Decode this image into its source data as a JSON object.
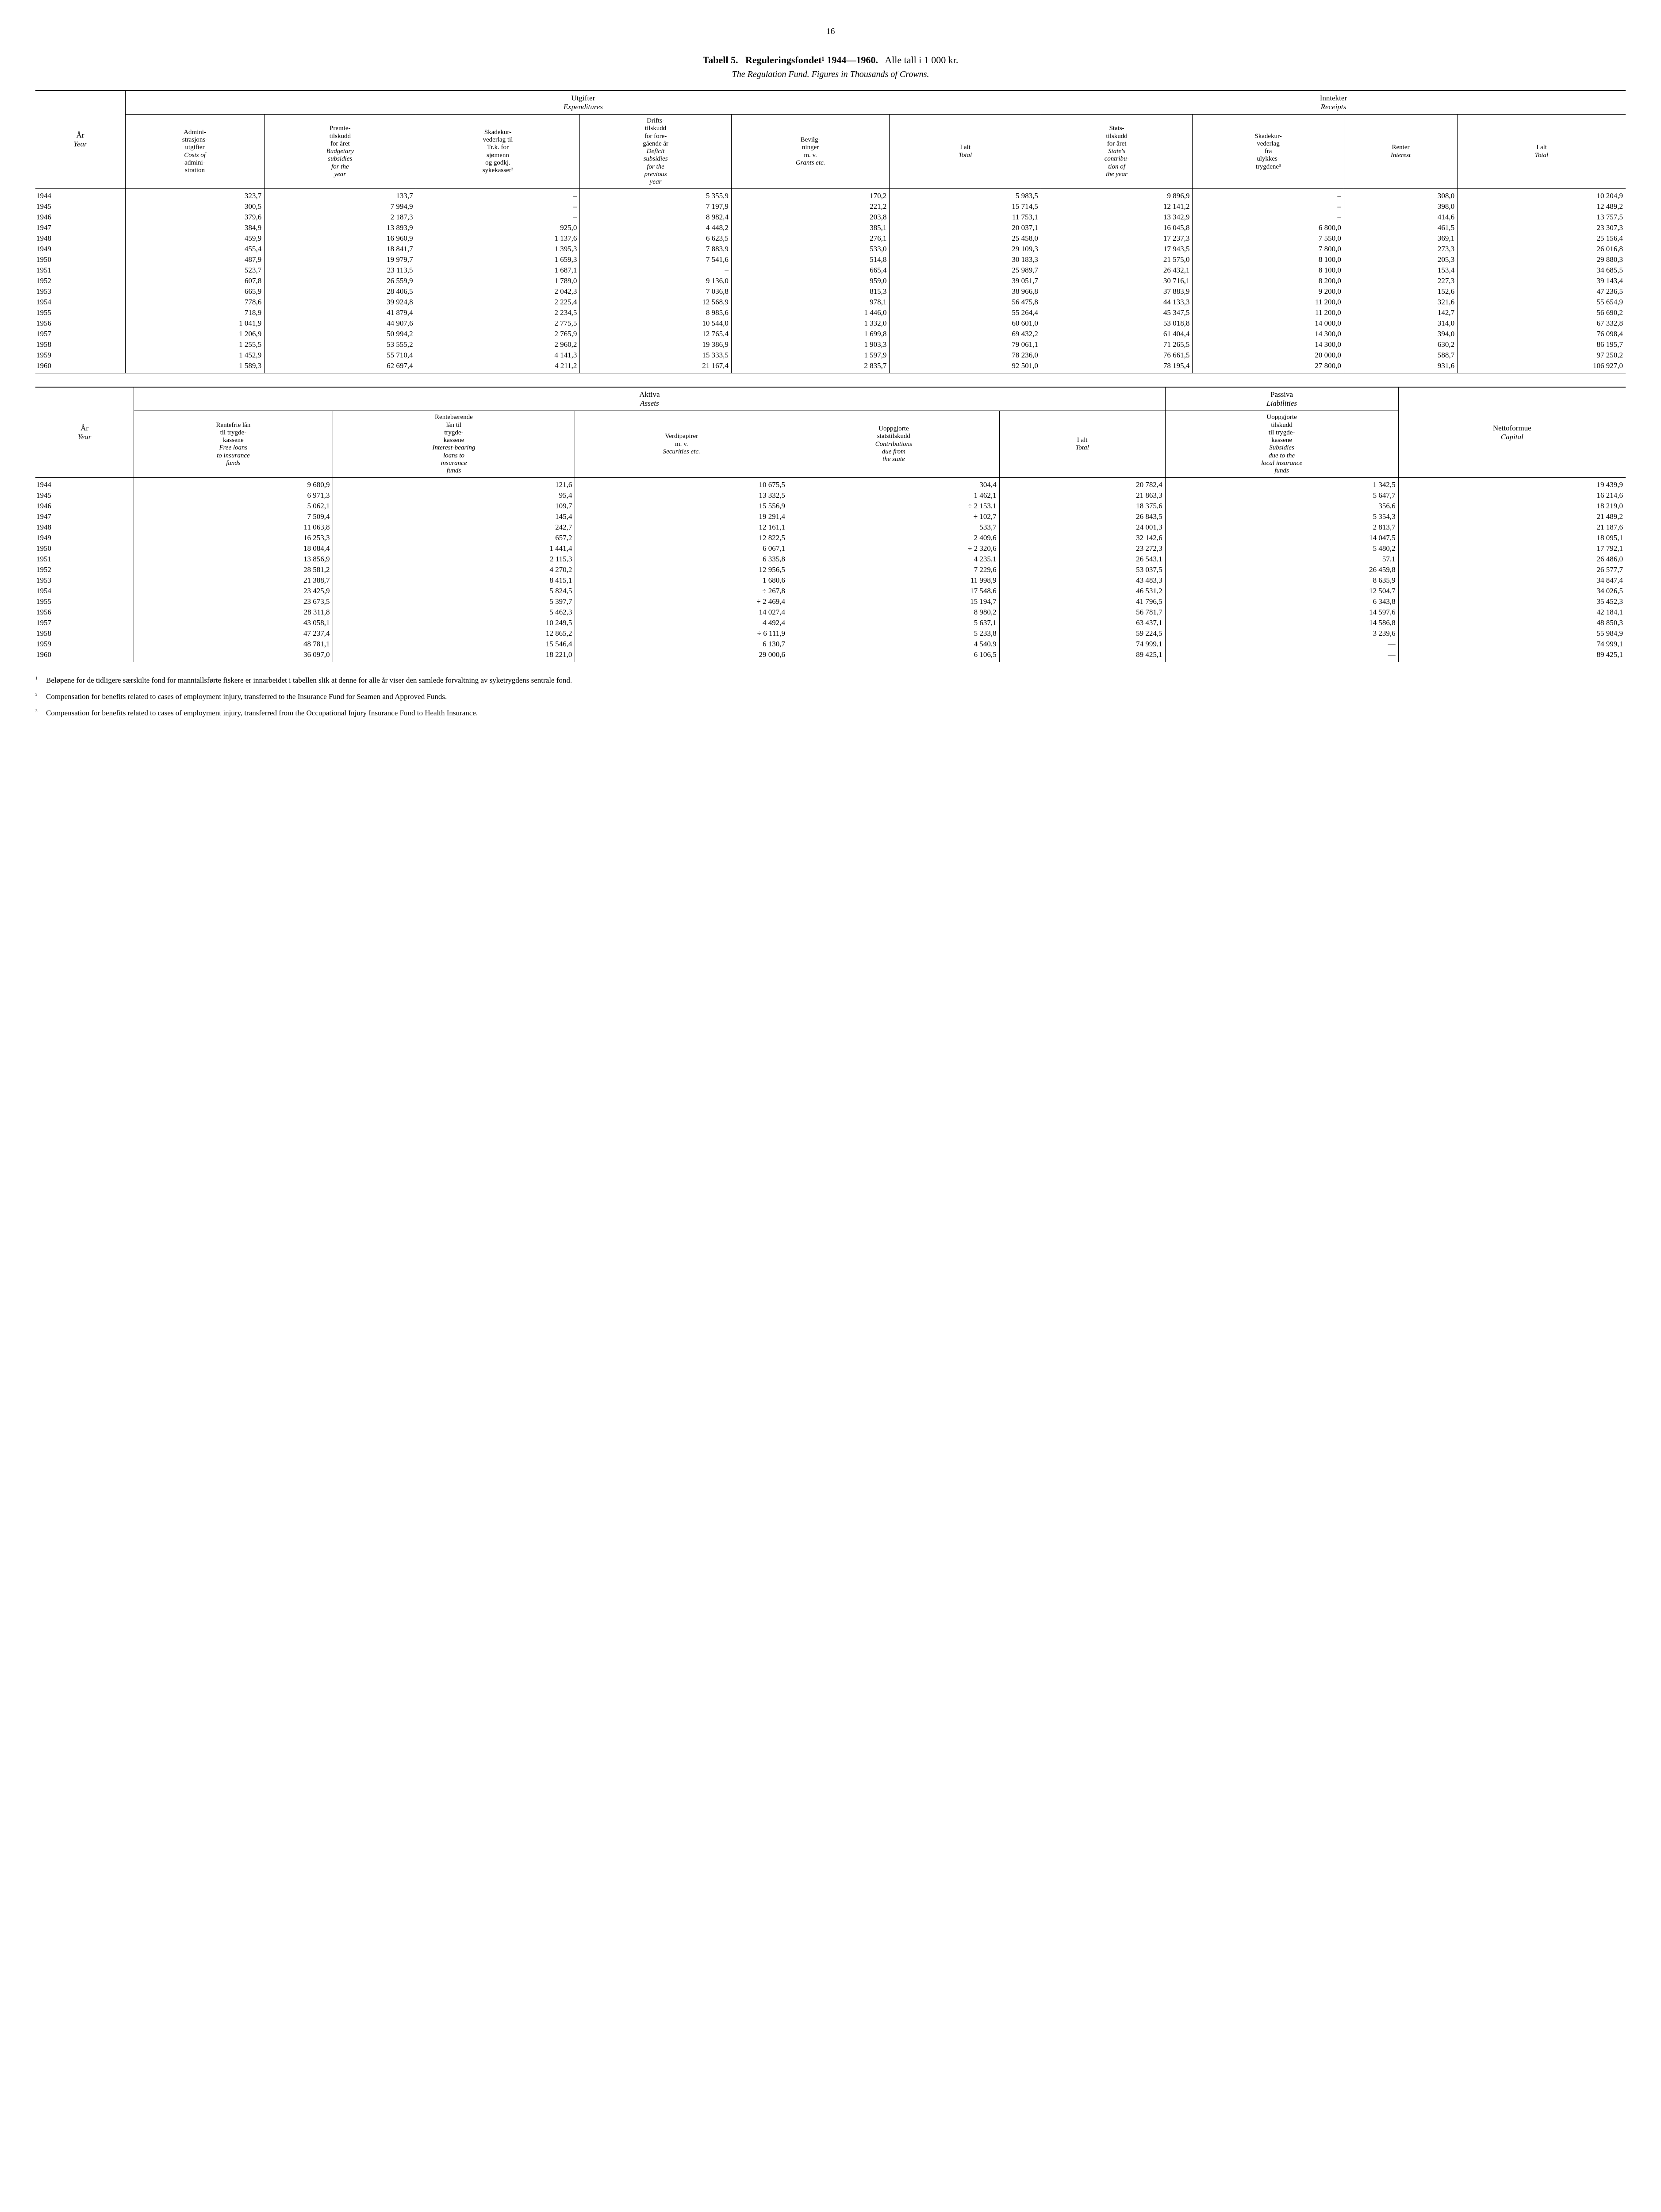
{
  "page_number": "16",
  "title_prefix": "Tabell 5.",
  "title_main": "Reguleringsfondet¹ 1944—1960.",
  "title_suffix": "Alle tall i 1 000 kr.",
  "subtitle": "The Regulation Fund. Figures in Thousands of Crowns.",
  "table1": {
    "groups": {
      "utgifter_no": "Utgifter",
      "utgifter_en": "Expenditures",
      "inntekter_no": "Inntekter",
      "inntekter_en": "Receipts"
    },
    "year_header": "År\nYear",
    "cols": [
      "Admini-\nstrasjons-\nutgifter\nCosts of\nadmini-\nstration",
      "Premie-\ntilskudd\nfor året\nBudgetary\nsubsidies\nfor the\nyear",
      "Skadekur-\nvederlag til\nTr.k. for\nsjømenn\nog godkj.\nsykekasser²",
      "Drifts-\ntilskudd\nfor fore-\ngående år\nDeficit\nsubsidies\nfor the\nprevious\nyear",
      "Bevilg-\nninger\nm. v.\nGrants etc.",
      "I alt\nTotal",
      "Stats-\ntilskudd\nfor året\nState's\ncontribu-\ntion of\nthe year",
      "Skadekur-\nvederlag\nfra\nulykkes-\ntrygdene³",
      "Renter\nInterest",
      "I alt\nTotal"
    ],
    "rows": [
      [
        "1944",
        "323,7",
        "133,7",
        "–",
        "5 355,9",
        "170,2",
        "5 983,5",
        "9 896,9",
        "–",
        "308,0",
        "10 204,9"
      ],
      [
        "1945",
        "300,5",
        "7 994,9",
        "–",
        "7 197,9",
        "221,2",
        "15 714,5",
        "12 141,2",
        "–",
        "398,0",
        "12 489,2"
      ],
      [
        "1946",
        "379,6",
        "2 187,3",
        "–",
        "8 982,4",
        "203,8",
        "11 753,1",
        "13 342,9",
        "–",
        "414,6",
        "13 757,5"
      ],
      [
        "1947",
        "384,9",
        "13 893,9",
        "925,0",
        "4 448,2",
        "385,1",
        "20 037,1",
        "16 045,8",
        "6 800,0",
        "461,5",
        "23 307,3"
      ],
      [
        "1948",
        "459,9",
        "16 960,9",
        "1 137,6",
        "6 623,5",
        "276,1",
        "25 458,0",
        "17 237,3",
        "7 550,0",
        "369,1",
        "25 156,4"
      ],
      [
        "1949",
        "455,4",
        "18 841,7",
        "1 395,3",
        "7 883,9",
        "533,0",
        "29 109,3",
        "17 943,5",
        "7 800,0",
        "273,3",
        "26 016,8"
      ],
      [
        "1950",
        "487,9",
        "19 979,7",
        "1 659,3",
        "7 541,6",
        "514,8",
        "30 183,3",
        "21 575,0",
        "8 100,0",
        "205,3",
        "29 880,3"
      ],
      [
        "1951",
        "523,7",
        "23 113,5",
        "1 687,1",
        "–",
        "665,4",
        "25 989,7",
        "26 432,1",
        "8 100,0",
        "153,4",
        "34 685,5"
      ],
      [
        "1952",
        "607,8",
        "26 559,9",
        "1 789,0",
        "9 136,0",
        "959,0",
        "39 051,7",
        "30 716,1",
        "8 200,0",
        "227,3",
        "39 143,4"
      ],
      [
        "1953",
        "665,9",
        "28 406,5",
        "2 042,3",
        "7 036,8",
        "815,3",
        "38 966,8",
        "37 883,9",
        "9 200,0",
        "152,6",
        "47 236,5"
      ],
      [
        "1954",
        "778,6",
        "39 924,8",
        "2 225,4",
        "12 568,9",
        "978,1",
        "56 475,8",
        "44 133,3",
        "11 200,0",
        "321,6",
        "55 654,9"
      ],
      [
        "1955",
        "718,9",
        "41 879,4",
        "2 234,5",
        "8 985,6",
        "1 446,0",
        "55 264,4",
        "45 347,5",
        "11 200,0",
        "142,7",
        "56 690,2"
      ],
      [
        "1956",
        "1 041,9",
        "44 907,6",
        "2 775,5",
        "10 544,0",
        "1 332,0",
        "60 601,0",
        "53 018,8",
        "14 000,0",
        "314,0",
        "67 332,8"
      ],
      [
        "1957",
        "1 206,9",
        "50 994,2",
        "2 765,9",
        "12 765,4",
        "1 699,8",
        "69 432,2",
        "61 404,4",
        "14 300,0",
        "394,0",
        "76 098,4"
      ],
      [
        "1958",
        "1 255,5",
        "53 555,2",
        "2 960,2",
        "19 386,9",
        "1 903,3",
        "79 061,1",
        "71 265,5",
        "14 300,0",
        "630,2",
        "86 195,7"
      ],
      [
        "1959",
        "1 452,9",
        "55 710,4",
        "4 141,3",
        "15 333,5",
        "1 597,9",
        "78 236,0",
        "76 661,5",
        "20 000,0",
        "588,7",
        "97 250,2"
      ],
      [
        "1960",
        "1 589,3",
        "62 697,4",
        "4 211,2",
        "21 167,4",
        "2 835,7",
        "92 501,0",
        "78 195,4",
        "27 800,0",
        "931,6",
        "106 927,0"
      ]
    ]
  },
  "table2": {
    "groups": {
      "aktiva_no": "Aktiva",
      "aktiva_en": "Assets",
      "passiva_no": "Passiva",
      "passiva_en": "Liabilities"
    },
    "year_header": "År\nYear",
    "cols": [
      "Rentefrie lån\ntil trygde-\nkassene\nFree loans\nto insurance\nfunds",
      "Rentebærende\nlån til\ntrygde-\nkassene\nInterest-bearing\nloans to\ninsurance\nfunds",
      "Verdipapirer\nm. v.\nSecurities etc.",
      "Uoppgjorte\nstatstilskudd\nContributions\ndue from\nthe state",
      "I alt\nTotal",
      "Uoppgjorte\ntilskudd\ntil trygde-\nkassene\nSubsidies\ndue to the\nlocal insurance\nfunds",
      "Nettoformue\nCapital"
    ],
    "rows": [
      [
        "1944",
        "9 680,9",
        "121,6",
        "10 675,5",
        "304,4",
        "20 782,4",
        "1 342,5",
        "19 439,9"
      ],
      [
        "1945",
        "6 971,3",
        "95,4",
        "13 332,5",
        "1 462,1",
        "21 863,3",
        "5 647,7",
        "16 214,6"
      ],
      [
        "1946",
        "5 062,1",
        "109,7",
        "15 556,9",
        "÷  2 153,1",
        "18 375,6",
        "356,6",
        "18 219,0"
      ],
      [
        "1947",
        "7 509,4",
        "145,4",
        "19 291,4",
        "÷     102,7",
        "26 843,5",
        "5 354,3",
        "21 489,2"
      ],
      [
        "1948",
        "11 063,8",
        "242,7",
        "12 161,1",
        "533,7",
        "24 001,3",
        "2 813,7",
        "21 187,6"
      ],
      [
        "1949",
        "16 253,3",
        "657,2",
        "12 822,5",
        "2 409,6",
        "32 142,6",
        "14 047,5",
        "18 095,1"
      ],
      [
        "1950",
        "18 084,4",
        "1 441,4",
        "6 067,1",
        "÷  2 320,6",
        "23 272,3",
        "5 480,2",
        "17 792,1"
      ],
      [
        "1951",
        "13 856,9",
        "2 115,3",
        "6 335,8",
        "4 235,1",
        "26 543,1",
        "57,1",
        "26 486,0"
      ],
      [
        "1952",
        "28 581,2",
        "4 270,2",
        "12 956,5",
        "7 229,6",
        "53 037,5",
        "26 459,8",
        "26 577,7"
      ],
      [
        "1953",
        "21 388,7",
        "8 415,1",
        "1 680,6",
        "11 998,9",
        "43 483,3",
        "8 635,9",
        "34 847,4"
      ],
      [
        "1954",
        "23 425,9",
        "5 824,5",
        "÷      267,8",
        "17 548,6",
        "46 531,2",
        "12 504,7",
        "34 026,5"
      ],
      [
        "1955",
        "23 673,5",
        "5 397,7",
        "÷   2 469,4",
        "15 194,7",
        "41 796,5",
        "6 343,8",
        "35 452,3"
      ],
      [
        "1956",
        "28 311,8",
        "5 462,3",
        "14 027,4",
        "8 980,2",
        "56 781,7",
        "14 597,6",
        "42 184,1"
      ],
      [
        "1957",
        "43 058,1",
        "10 249,5",
        "4 492,4",
        "5 637,1",
        "63 437,1",
        "14 586,8",
        "48 850,3"
      ],
      [
        "1958",
        "47 237,4",
        "12 865,2",
        "÷   6 111,9",
        "5 233,8",
        "59 224,5",
        "3 239,6",
        "55 984,9"
      ],
      [
        "1959",
        "48 781,1",
        "15 546,4",
        "6 130,7",
        "4 540,9",
        "74 999,1",
        "—",
        "74 999,1"
      ],
      [
        "1960",
        "36 097,0",
        "18 221,0",
        "29 000,6",
        "6 106,5",
        "89 425,1",
        "—",
        "89 425,1"
      ]
    ]
  },
  "footnotes": [
    {
      "mark": "1",
      "text": "Beløpene for de tidligere særskilte fond for manntallsførte fiskere er innarbeidet i tabellen slik at denne for alle år viser den samlede forvaltning av syketrygdens sentrale fond."
    },
    {
      "mark": "2",
      "text": "Compensation for benefits related to cases of employment injury, transferred to the Insurance Fund for Seamen and Approved Funds."
    },
    {
      "mark": "3",
      "text": "Compensation for benefits related to cases of employment injury, transferred from the Occupational Injury Insurance Fund to Health Insurance."
    }
  ]
}
